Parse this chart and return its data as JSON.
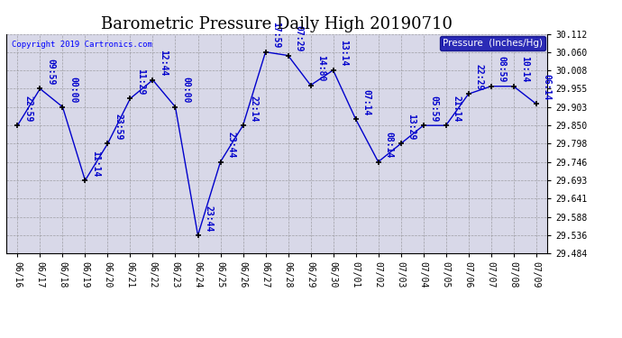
{
  "title": "Barometric Pressure Daily High 20190710",
  "copyright": "Copyright 2019 Cartronics.com",
  "legend_label": "Pressure  (Inches/Hg)",
  "x_labels": [
    "06/16",
    "06/17",
    "06/18",
    "06/19",
    "06/20",
    "06/21",
    "06/22",
    "06/23",
    "06/24",
    "06/25",
    "06/26",
    "06/27",
    "06/28",
    "06/29",
    "06/30",
    "07/01",
    "07/02",
    "07/03",
    "07/04",
    "07/05",
    "07/06",
    "07/07",
    "07/08",
    "07/09"
  ],
  "point_labels": [
    "22:59",
    "09:59",
    "00:00",
    "11:14",
    "23:59",
    "11:29",
    "12:44",
    "00:00",
    "23:44",
    "23:44",
    "22:14",
    "17:59",
    "07:29",
    "14:80",
    "13:14",
    "07:14",
    "08:14",
    "13:29",
    "05:59",
    "21:14",
    "22:29",
    "08:59",
    "10:14",
    "06:14"
  ],
  "y_values": [
    29.85,
    29.955,
    29.903,
    29.693,
    29.798,
    29.927,
    29.98,
    29.903,
    29.536,
    29.746,
    29.85,
    30.06,
    30.05,
    29.965,
    30.008,
    29.868,
    29.746,
    29.798,
    29.85,
    29.85,
    29.94,
    29.962,
    29.962,
    29.912
  ],
  "ylim": [
    29.484,
    30.112
  ],
  "yticks": [
    29.484,
    29.536,
    29.588,
    29.641,
    29.693,
    29.746,
    29.798,
    29.85,
    29.903,
    29.955,
    30.008,
    30.06,
    30.112
  ],
  "line_color": "#0000cc",
  "marker_color": "#000000",
  "background_color": "#ffffff",
  "plot_bg_color": "#d8d8e8",
  "grid_color": "#888888",
  "title_fontsize": 13,
  "tick_fontsize": 7,
  "point_label_fontsize": 7,
  "legend_bg": "#0000aa",
  "legend_fg": "#ffffff"
}
